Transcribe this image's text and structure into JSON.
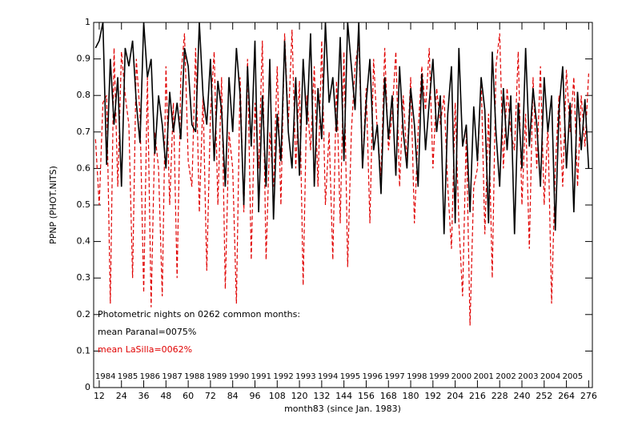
{
  "chart_data": {
    "type": "line",
    "xlabel": "month83 (since Jan. 1983)",
    "ylabel": "PPNP (PHOT.NITS)",
    "x": [
      10,
      12,
      14,
      16,
      18,
      20,
      22,
      24,
      26,
      28,
      30,
      32,
      34,
      36,
      38,
      40,
      42,
      44,
      46,
      48,
      50,
      52,
      54,
      56,
      58,
      60,
      62,
      64,
      66,
      68,
      70,
      72,
      74,
      76,
      78,
      80,
      82,
      84,
      86,
      88,
      90,
      92,
      94,
      96,
      98,
      100,
      102,
      104,
      106,
      108,
      110,
      112,
      114,
      116,
      118,
      120,
      122,
      124,
      126,
      128,
      130,
      132,
      134,
      136,
      138,
      140,
      142,
      144,
      146,
      148,
      150,
      152,
      154,
      156,
      158,
      160,
      162,
      164,
      166,
      168,
      170,
      172,
      174,
      176,
      178,
      180,
      182,
      184,
      186,
      188,
      190,
      192,
      194,
      196,
      198,
      200,
      202,
      204,
      206,
      208,
      210,
      212,
      214,
      216,
      218,
      220,
      222,
      224,
      226,
      228,
      230,
      232,
      234,
      236,
      238,
      240,
      242,
      244,
      246,
      248,
      250,
      252,
      254,
      256,
      258,
      260,
      262,
      264,
      266,
      268,
      270,
      272,
      274,
      276
    ],
    "series": [
      {
        "color": "#000000",
        "dashed": false,
        "values": [
          0.93,
          0.95,
          1.0,
          0.61,
          0.9,
          0.72,
          0.85,
          0.55,
          0.93,
          0.88,
          0.95,
          0.78,
          0.67,
          1.0,
          0.85,
          0.9,
          0.64,
          0.8,
          0.72,
          0.6,
          0.81,
          0.7,
          0.78,
          0.68,
          0.93,
          0.88,
          0.72,
          0.7,
          1.0,
          0.8,
          0.72,
          0.9,
          0.62,
          0.84,
          0.76,
          0.55,
          0.85,
          0.7,
          0.93,
          0.8,
          0.5,
          0.88,
          0.66,
          0.95,
          0.48,
          0.8,
          0.55,
          0.9,
          0.46,
          0.75,
          0.62,
          0.95,
          0.7,
          0.6,
          0.85,
          0.58,
          0.9,
          0.72,
          0.97,
          0.55,
          0.82,
          0.68,
          1.0,
          0.78,
          0.85,
          0.7,
          0.96,
          0.62,
          1.0,
          0.88,
          0.76,
          1.0,
          0.6,
          0.78,
          0.9,
          0.65,
          0.72,
          0.53,
          0.85,
          0.68,
          0.8,
          0.58,
          0.88,
          0.7,
          0.6,
          0.82,
          0.72,
          0.55,
          0.86,
          0.65,
          0.78,
          0.9,
          0.7,
          0.8,
          0.42,
          0.75,
          0.88,
          0.45,
          0.93,
          0.66,
          0.72,
          0.48,
          0.77,
          0.62,
          0.85,
          0.76,
          0.45,
          0.92,
          0.7,
          0.55,
          0.82,
          0.65,
          0.8,
          0.42,
          0.78,
          0.6,
          0.93,
          0.66,
          0.82,
          0.72,
          0.55,
          0.85,
          0.7,
          0.8,
          0.43,
          0.76,
          0.88,
          0.6,
          0.78,
          0.48,
          0.81,
          0.65,
          0.79,
          0.6
        ]
      },
      {
        "color": "#e00000",
        "dashed": true,
        "values": [
          0.68,
          0.5,
          0.78,
          0.8,
          0.23,
          0.93,
          0.55,
          0.92,
          0.8,
          0.72,
          0.3,
          0.9,
          0.75,
          0.26,
          0.85,
          0.22,
          0.7,
          0.6,
          0.25,
          0.88,
          0.5,
          0.78,
          0.3,
          0.85,
          0.97,
          0.62,
          0.55,
          0.93,
          0.48,
          0.8,
          0.32,
          0.75,
          0.92,
          0.5,
          0.85,
          0.27,
          0.7,
          0.6,
          0.23,
          0.85,
          0.48,
          0.9,
          0.35,
          0.78,
          0.6,
          0.95,
          0.35,
          0.7,
          0.55,
          0.88,
          0.5,
          0.97,
          0.72,
          0.98,
          0.6,
          0.84,
          0.28,
          0.8,
          0.65,
          0.88,
          0.55,
          0.95,
          0.5,
          0.7,
          0.35,
          0.84,
          0.45,
          0.92,
          0.33,
          0.7,
          0.88,
          0.95,
          0.6,
          0.82,
          0.45,
          0.9,
          0.7,
          0.58,
          0.93,
          0.65,
          0.75,
          0.92,
          0.55,
          0.8,
          0.62,
          0.85,
          0.45,
          0.7,
          0.88,
          0.76,
          0.93,
          0.6,
          0.82,
          0.72,
          0.8,
          0.55,
          0.38,
          0.78,
          0.45,
          0.25,
          0.7,
          0.17,
          0.55,
          0.6,
          0.85,
          0.42,
          0.75,
          0.3,
          0.88,
          0.97,
          0.6,
          0.82,
          0.7,
          0.65,
          0.92,
          0.5,
          0.75,
          0.38,
          0.85,
          0.6,
          0.88,
          0.5,
          0.72,
          0.23,
          0.6,
          0.8,
          0.55,
          0.87,
          0.7,
          0.85,
          0.55,
          0.8,
          0.66,
          0.86
        ]
      }
    ],
    "xlim": [
      9,
      278
    ],
    "xticks": [
      12,
      24,
      36,
      48,
      60,
      72,
      84,
      96,
      108,
      120,
      132,
      144,
      156,
      168,
      180,
      192,
      204,
      216,
      228,
      240,
      252,
      264,
      276
    ],
    "ylim": [
      0,
      1
    ],
    "yticks": [
      0,
      0.1,
      0.2,
      0.3,
      0.4,
      0.5,
      0.6,
      0.7,
      0.8,
      0.9,
      1
    ],
    "grid": false,
    "year_labels": [
      "1984",
      "1985",
      "1986",
      "1987",
      "1988",
      "1989",
      "1990",
      "1991",
      "1992",
      "1993",
      "1994",
      "1995",
      "1996",
      "1997",
      "1998",
      "1999",
      "2000",
      "2001",
      "2002",
      "2003",
      "2004",
      "2005"
    ],
    "annotations": [
      {
        "text": "Photometric nights on 0262 common months:",
        "color": "#000000"
      },
      {
        "text": "mean Paranal=0075%",
        "color": "#000000"
      },
      {
        "text": "mean LaSilla=0062%",
        "color": "#e00000"
      }
    ]
  }
}
